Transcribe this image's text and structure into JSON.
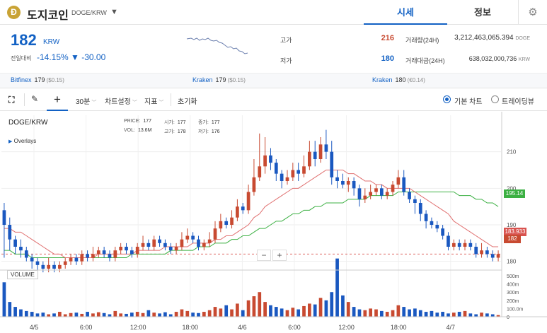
{
  "header": {
    "coin_symbol": "Ð",
    "coin_name": "도지코인",
    "pair": "DOGE/KRW",
    "caret": "▼",
    "tab_quote": "시세",
    "tab_info": "정보",
    "settings_icon": "gear-icon"
  },
  "price": {
    "value": "182",
    "unit": "KRW",
    "change_label": "전일대비",
    "change_pct": "-14.15%",
    "change_amt": "▼ -30.00",
    "color_down": "#1261c4",
    "color_up": "#c84a31"
  },
  "stats": {
    "high_label": "고가",
    "high": "216",
    "low_label": "저가",
    "low": "180",
    "vol_label": "거래량(24H)",
    "vol": "3,212,463,065.394",
    "vol_unit": "DOGE",
    "amt_label": "거래대금(24H)",
    "amt": "638,032,000,736",
    "amt_unit": "KRW"
  },
  "exchanges": [
    {
      "name": "Bitfinex",
      "price": "179",
      "usd": "($0.15)"
    },
    {
      "name": "Kraken",
      "price": "179",
      "usd": "($0.15)"
    },
    {
      "name": "Kraken",
      "price": "180",
      "usd": "(€0.14)"
    }
  ],
  "toolbar": {
    "interval": "30분",
    "chart_settings": "차트설정",
    "indicator": "지표",
    "reset": "초기화",
    "basic_chart": "기본 차트",
    "tradingview": "트레이딩뷰"
  },
  "chart": {
    "symbol": "DOGE/KRW",
    "overlays": "Overlays",
    "ohlc": {
      "price_label": "PRICE:",
      "price": "177",
      "open_label": "시가:",
      "open": "177",
      "close_label": "종가:",
      "close": "177",
      "vol_label": "VOL:",
      "vol": "13.6M",
      "high_label": "고가:",
      "high": "178",
      "low_label": "저가:",
      "low": "176"
    },
    "volume_label": "VOLUME",
    "zoom_out": "−",
    "zoom_in": "+",
    "price_ticks": [
      "210",
      "200",
      "190",
      "180"
    ],
    "vol_ticks": [
      "500m",
      "400m",
      "300m",
      "200m",
      "100.0m",
      "0"
    ],
    "time_ticks": [
      "4/5",
      "6:00",
      "12:00",
      "18:00",
      "4/6",
      "6:00",
      "12:00",
      "18:00",
      "4/7"
    ],
    "ma_long_tag": "195.14",
    "ma_short_tag": "183.933",
    "last_tag": "182",
    "colors": {
      "up": "#c84a31",
      "down": "#1a58c0",
      "ma_short": "#e07070",
      "ma_long": "#3cb043"
    }
  },
  "chart_data": {
    "type": "candlestick",
    "x_labels": [
      "4/5",
      "6:00",
      "12:00",
      "18:00",
      "4/6",
      "6:00",
      "12:00",
      "18:00",
      "4/7"
    ],
    "ylim": [
      178,
      220
    ],
    "candles": [
      [
        194,
        190,
        196,
        181
      ],
      [
        190,
        186,
        192,
        183
      ],
      [
        186,
        184,
        187,
        182
      ],
      [
        184,
        183,
        186,
        181
      ],
      [
        183,
        181,
        184,
        180
      ],
      [
        181,
        180,
        182,
        178
      ],
      [
        180,
        179,
        181,
        177
      ],
      [
        179,
        178,
        180,
        177
      ],
      [
        178,
        179,
        181,
        177
      ],
      [
        179,
        178,
        180,
        177
      ],
      [
        178,
        179,
        180,
        177
      ],
      [
        179,
        180,
        181,
        178
      ],
      [
        180,
        181,
        182,
        179
      ],
      [
        181,
        180,
        182,
        179
      ],
      [
        180,
        182,
        183,
        179
      ],
      [
        182,
        181,
        183,
        180
      ],
      [
        181,
        182,
        184,
        180
      ],
      [
        182,
        183,
        184,
        181
      ],
      [
        183,
        182,
        184,
        181
      ],
      [
        182,
        181,
        183,
        180
      ],
      [
        181,
        183,
        184,
        180
      ],
      [
        183,
        184,
        185,
        182
      ],
      [
        184,
        183,
        185,
        182
      ],
      [
        183,
        182,
        184,
        181
      ],
      [
        182,
        184,
        185,
        181
      ],
      [
        184,
        185,
        187,
        183
      ],
      [
        185,
        184,
        186,
        183
      ],
      [
        184,
        186,
        187,
        183
      ],
      [
        186,
        185,
        187,
        184
      ],
      [
        185,
        184,
        186,
        183
      ],
      [
        184,
        183,
        185,
        182
      ],
      [
        183,
        184,
        185,
        182
      ],
      [
        184,
        186,
        188,
        183
      ],
      [
        186,
        187,
        189,
        185
      ],
      [
        187,
        186,
        188,
        185
      ],
      [
        186,
        184,
        187,
        183
      ],
      [
        184,
        185,
        186,
        183
      ],
      [
        185,
        186,
        188,
        184
      ],
      [
        186,
        189,
        191,
        185
      ],
      [
        189,
        191,
        193,
        188
      ],
      [
        191,
        190,
        192,
        189
      ],
      [
        190,
        192,
        194,
        189
      ],
      [
        192,
        195,
        197,
        191
      ],
      [
        195,
        194,
        196,
        193
      ],
      [
        194,
        199,
        201,
        193
      ],
      [
        199,
        203,
        208,
        198
      ],
      [
        203,
        206,
        215,
        202
      ],
      [
        206,
        209,
        214,
        204
      ],
      [
        209,
        207,
        211,
        205
      ],
      [
        207,
        204,
        208,
        202
      ],
      [
        204,
        202,
        205,
        200
      ],
      [
        202,
        203,
        205,
        201
      ],
      [
        203,
        205,
        207,
        202
      ],
      [
        205,
        204,
        207,
        202
      ],
      [
        204,
        206,
        209,
        203
      ],
      [
        206,
        210,
        213,
        205
      ],
      [
        210,
        208,
        213,
        206
      ],
      [
        208,
        212,
        214,
        207
      ],
      [
        212,
        210,
        216,
        208
      ],
      [
        210,
        203,
        213,
        201
      ],
      [
        203,
        202,
        205,
        200
      ],
      [
        202,
        201,
        204,
        200
      ],
      [
        201,
        202,
        203,
        199
      ],
      [
        202,
        200,
        203,
        198
      ],
      [
        200,
        197,
        201,
        195
      ],
      [
        197,
        198,
        200,
        196
      ],
      [
        198,
        199,
        201,
        197
      ],
      [
        199,
        200,
        201,
        198
      ],
      [
        200,
        198,
        201,
        197
      ],
      [
        198,
        199,
        200,
        197
      ],
      [
        199,
        201,
        202,
        198
      ],
      [
        201,
        203,
        205,
        200
      ],
      [
        203,
        199,
        205,
        198
      ],
      [
        199,
        197,
        200,
        196
      ],
      [
        197,
        196,
        198,
        193
      ],
      [
        196,
        193,
        197,
        191
      ],
      [
        193,
        191,
        194,
        189
      ],
      [
        191,
        190,
        192,
        189
      ],
      [
        190,
        189,
        191,
        188
      ],
      [
        189,
        187,
        190,
        186
      ],
      [
        187,
        184,
        188,
        183
      ],
      [
        184,
        185,
        186,
        183
      ],
      [
        185,
        184,
        186,
        183
      ],
      [
        184,
        185,
        186,
        183
      ],
      [
        185,
        184,
        186,
        183
      ],
      [
        184,
        182,
        185,
        181
      ],
      [
        182,
        183,
        185,
        181
      ],
      [
        183,
        182,
        184,
        181
      ],
      [
        182,
        181,
        183,
        180
      ],
      [
        181,
        182,
        183,
        180
      ]
    ],
    "ma_short": [
      189,
      189,
      188,
      188,
      187,
      186,
      185,
      184,
      183,
      182,
      182,
      181,
      181,
      181,
      181,
      181,
      181,
      182,
      182,
      182,
      182,
      182,
      182,
      182,
      183,
      183,
      183,
      183,
      183,
      184,
      184,
      184,
      184,
      184,
      185,
      185,
      185,
      185,
      186,
      186,
      187,
      187,
      188,
      189,
      190,
      192,
      193,
      195,
      196,
      197,
      198,
      199,
      200,
      200,
      201,
      202,
      203,
      204,
      205,
      205,
      205,
      205,
      204,
      204,
      203,
      202,
      202,
      201,
      201,
      200,
      200,
      200,
      200,
      200,
      199,
      198,
      197,
      196,
      195,
      194,
      193,
      191,
      190,
      189,
      188,
      187,
      186,
      185,
      184,
      184
    ],
    "ma_long": [
      183,
      183,
      182,
      182,
      182,
      181,
      181,
      181,
      181,
      181,
      181,
      181,
      181,
      181,
      181,
      181,
      181,
      181,
      181,
      181,
      181,
      181,
      181,
      182,
      182,
      182,
      182,
      182,
      182,
      182,
      183,
      183,
      183,
      183,
      183,
      184,
      184,
      184,
      185,
      185,
      185,
      186,
      186,
      187,
      187,
      188,
      189,
      189,
      190,
      191,
      191,
      192,
      193,
      193,
      194,
      194,
      195,
      195,
      196,
      196,
      196,
      196,
      197,
      197,
      197,
      197,
      198,
      198,
      198,
      198,
      198,
      199,
      199,
      199,
      199,
      199,
      199,
      199,
      199,
      199,
      199,
      199,
      198,
      198,
      198,
      197,
      197,
      196,
      196,
      195
    ],
    "volumes": [
      420,
      180,
      120,
      90,
      70,
      60,
      40,
      50,
      30,
      40,
      60,
      30,
      45,
      50,
      35,
      60,
      40,
      55,
      45,
      30,
      70,
      40,
      35,
      50,
      60,
      45,
      80,
      50,
      40,
      55,
      30,
      60,
      90,
      70,
      50,
      45,
      60,
      80,
      120,
      100,
      140,
      90,
      160,
      80,
      200,
      250,
      300,
      180,
      140,
      120,
      100,
      80,
      110,
      90,
      130,
      160,
      150,
      230,
      200,
      300,
      710,
      260,
      180,
      120,
      90,
      80,
      100,
      90,
      70,
      60,
      80,
      140,
      120,
      90,
      100,
      80,
      60,
      70,
      50,
      60,
      40,
      50,
      60,
      70,
      40,
      30,
      50,
      40,
      30,
      20
    ]
  }
}
